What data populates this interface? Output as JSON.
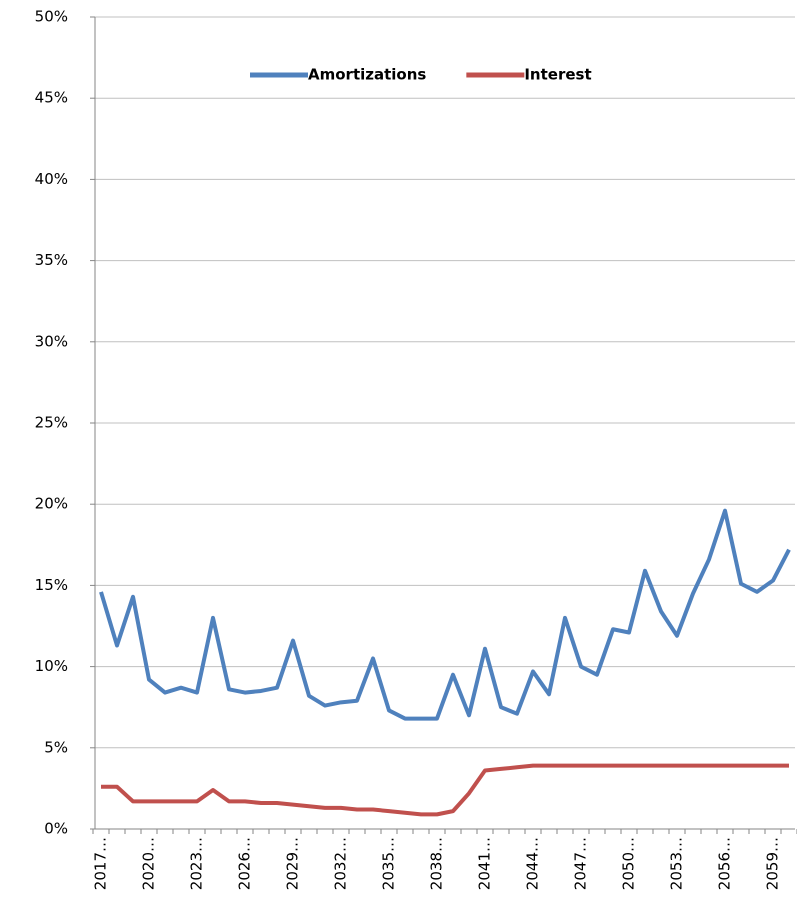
{
  "chart_data": {
    "type": "line",
    "categories": [
      "2017…",
      null,
      null,
      "2020…",
      null,
      null,
      "2023…",
      null,
      null,
      "2026…",
      null,
      null,
      "2029…",
      null,
      null,
      "2032…",
      null,
      null,
      "2035…",
      null,
      null,
      "2038…",
      null,
      null,
      "2041…",
      null,
      null,
      "2044…",
      null,
      null,
      "2047…",
      null,
      null,
      "2050…",
      null,
      null,
      "2053…",
      null,
      null,
      "2056…",
      null,
      null,
      "2059…",
      null
    ],
    "series": [
      {
        "name": "Amortizations",
        "color": "#4f81bd",
        "values": [
          14.6,
          11.3,
          14.3,
          9.2,
          8.4,
          8.7,
          8.4,
          13.0,
          8.6,
          8.4,
          8.5,
          8.7,
          11.6,
          8.2,
          7.6,
          7.8,
          7.9,
          10.5,
          7.3,
          6.8,
          6.8,
          6.8,
          9.5,
          7.0,
          11.1,
          7.5,
          7.1,
          9.7,
          8.3,
          13.0,
          10.0,
          9.5,
          12.3,
          12.1,
          15.9,
          13.4,
          11.9,
          14.5,
          16.6,
          19.6,
          15.1,
          14.6,
          15.3,
          17.2
        ]
      },
      {
        "name": "Interest",
        "color": "#c0504d",
        "values": [
          2.6,
          2.6,
          1.7,
          1.7,
          1.7,
          1.7,
          1.7,
          2.4,
          1.7,
          1.7,
          1.6,
          1.6,
          1.5,
          1.4,
          1.3,
          1.3,
          1.2,
          1.2,
          1.1,
          1.0,
          0.9,
          0.9,
          1.1,
          2.2,
          3.6,
          3.7,
          3.8,
          3.9,
          3.9,
          3.9,
          3.9,
          3.9,
          3.9,
          3.9,
          3.9,
          3.9,
          3.9,
          3.9,
          3.9,
          3.9,
          3.9,
          3.9,
          3.9,
          3.9
        ]
      }
    ],
    "ylim": [
      0,
      50
    ],
    "yticks": [
      {
        "value": 0,
        "label": "0%"
      },
      {
        "value": 5,
        "label": "5%"
      },
      {
        "value": 10,
        "label": "10%"
      },
      {
        "value": 15,
        "label": "15%"
      },
      {
        "value": 20,
        "label": "20%"
      },
      {
        "value": 25,
        "label": "25%"
      },
      {
        "value": 30,
        "label": "30%"
      },
      {
        "value": 35,
        "label": "35%"
      },
      {
        "value": 40,
        "label": "40%"
      },
      {
        "value": 45,
        "label": "45%"
      },
      {
        "value": 50,
        "label": "50%"
      }
    ],
    "grid": true,
    "legend": "top"
  }
}
